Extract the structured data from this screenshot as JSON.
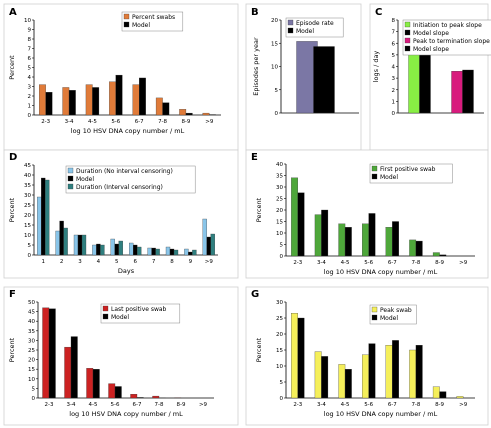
{
  "chart_data": [
    {
      "panel": "A",
      "type": "bar",
      "categories": [
        "2-3",
        "3-4",
        "4-5",
        "5-6",
        "6-7",
        "7-8",
        "8-9",
        ">9"
      ],
      "series": [
        {
          "name": "Percent swabs",
          "color": "#e07b39",
          "values": [
            3.2,
            2.9,
            3.2,
            3.5,
            3.2,
            1.8,
            0.6,
            0.2
          ]
        },
        {
          "name": "Model",
          "color": "#000000",
          "values": [
            2.4,
            2.6,
            2.9,
            4.2,
            3.9,
            1.3,
            0.2,
            0.05
          ]
        }
      ],
      "xlabel": "log 10 HSV DNA copy number / mL",
      "ylabel": "Percent",
      "ylim": [
        0,
        10
      ],
      "yticks": [
        "0",
        "1",
        "2",
        "3",
        "4",
        "5",
        "6",
        "7",
        "8",
        "9",
        "10"
      ]
    },
    {
      "panel": "B",
      "type": "bar",
      "categories": [
        ""
      ],
      "series": [
        {
          "name": "Episode rate",
          "color": "#7b77a5",
          "values": [
            15.4
          ]
        },
        {
          "name": "Model",
          "color": "#000000",
          "values": [
            14.3
          ]
        }
      ],
      "xlabel": "",
      "ylabel": "Episodes per year",
      "ylim": [
        0,
        20
      ],
      "yticks": [
        "0",
        "5",
        "10",
        "15",
        "20"
      ]
    },
    {
      "panel": "C",
      "type": "bar",
      "categories": [
        "",
        ""
      ],
      "series": [
        {
          "name": "Initiation to peak slope",
          "color": "#88ee44",
          "values": [
            5.0,
            null
          ]
        },
        {
          "name": "Model slope",
          "color": "#000000",
          "values": [
            5.3,
            null
          ]
        },
        {
          "name": "Peak to termination slope",
          "color": "#d81b7d",
          "values": [
            null,
            3.6
          ]
        },
        {
          "name": "Model slope",
          "color": "#000000",
          "values": [
            null,
            3.7
          ]
        }
      ],
      "xlabel": "",
      "ylabel": "logs / day",
      "ylim": [
        0,
        8
      ],
      "yticks": [
        "0",
        "1",
        "2",
        "3",
        "4",
        "5",
        "6",
        "7",
        "8"
      ]
    },
    {
      "panel": "D",
      "type": "bar",
      "categories": [
        "1",
        "2",
        "3",
        "4",
        "5",
        "6",
        "7",
        "8",
        "9",
        ">9"
      ],
      "series": [
        {
          "name": "Duration (No interval censoring)",
          "color": "#89c5e9",
          "values": [
            29,
            12,
            10,
            5,
            8,
            6,
            3.5,
            4,
            3,
            18
          ]
        },
        {
          "name": "Model",
          "color": "#000000",
          "values": [
            38.5,
            17,
            10,
            5.5,
            5.5,
            5,
            3.5,
            3,
            1.5,
            9
          ]
        },
        {
          "name": "Duration (Interval censoring)",
          "color": "#2f7f7f",
          "values": [
            37.5,
            13.5,
            10,
            5,
            7,
            4,
            3,
            2.5,
            2.5,
            10.5
          ]
        }
      ],
      "xlabel": "Days",
      "ylabel": "Percent",
      "ylim": [
        0,
        45
      ],
      "yticks": [
        "0",
        "5",
        "10",
        "15",
        "20",
        "25",
        "30",
        "35",
        "40",
        "45"
      ]
    },
    {
      "panel": "E",
      "type": "bar",
      "categories": [
        "2-3",
        "3-4",
        "4-5",
        "5-6",
        "6-7",
        "7-8",
        "8-9",
        ">9"
      ],
      "series": [
        {
          "name": "First positive swab",
          "color": "#4ea73a",
          "values": [
            34,
            18,
            14,
            14,
            12.5,
            7,
            1.5,
            0
          ]
        },
        {
          "name": "Model",
          "color": "#000000",
          "values": [
            27.5,
            20,
            12.5,
            18.5,
            15,
            6.5,
            0.5,
            0
          ]
        }
      ],
      "xlabel": "log 10 HSV DNA copy number / mL",
      "ylabel": "Percent",
      "ylim": [
        0,
        40
      ],
      "yticks": [
        "0",
        "5",
        "10",
        "15",
        "20",
        "25",
        "30",
        "35",
        "40"
      ]
    },
    {
      "panel": "F",
      "type": "bar",
      "categories": [
        "2-3",
        "3-4",
        "4-5",
        "5-6",
        "6-7",
        "7-8",
        "8-9",
        ">9"
      ],
      "series": [
        {
          "name": "Last positive swab",
          "color": "#cc2222",
          "values": [
            47,
            26.5,
            15.5,
            7.5,
            2,
            1,
            0.2,
            0
          ]
        },
        {
          "name": "Model",
          "color": "#000000",
          "values": [
            46.5,
            32,
            15,
            6,
            0.3,
            0.1,
            0,
            0
          ]
        }
      ],
      "xlabel": "log 10 HSV DNA copy number / mL",
      "ylabel": "Percent",
      "ylim": [
        0,
        50
      ],
      "yticks": [
        "0",
        "5",
        "10",
        "15",
        "20",
        "25",
        "30",
        "35",
        "40",
        "45",
        "50"
      ]
    },
    {
      "panel": "G",
      "type": "bar",
      "categories": [
        "2-3",
        "3-4",
        "4-5",
        "5-6",
        "6-7",
        "7-8",
        "8-9",
        ">9"
      ],
      "series": [
        {
          "name": "Peak swab",
          "color": "#f5ef5a",
          "values": [
            26.5,
            14.5,
            10.5,
            13.5,
            16.5,
            15,
            3.5,
            0.5
          ]
        },
        {
          "name": "Model",
          "color": "#000000",
          "values": [
            25,
            13,
            9,
            17,
            18,
            16.5,
            2,
            0
          ]
        }
      ],
      "xlabel": "log 10 HSV DNA copy number / mL",
      "ylabel": "Percent",
      "ylim": [
        0,
        30
      ],
      "yticks": [
        "0",
        "5",
        "10",
        "15",
        "20",
        "25",
        "30"
      ]
    }
  ]
}
